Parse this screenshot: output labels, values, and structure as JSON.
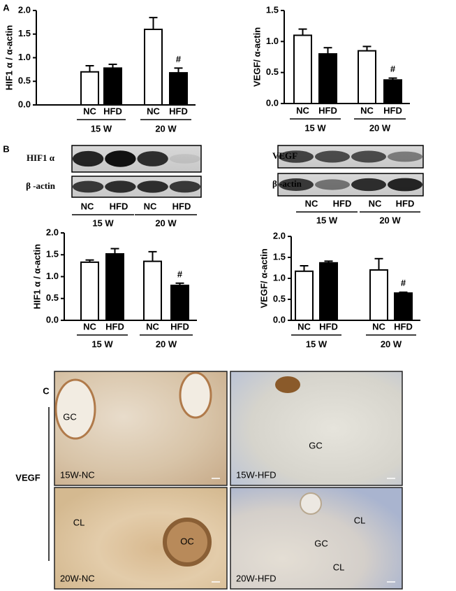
{
  "panel_labels": [
    "A",
    "B",
    "C"
  ],
  "chart_data": [
    {
      "type": "bar",
      "ylabel": "HIF1 α / α-actin",
      "categories": [
        "NC",
        "HFD",
        "NC",
        "HFD"
      ],
      "groups": [
        "15 W",
        "20 W"
      ],
      "values": [
        0.7,
        0.78,
        1.6,
        0.68
      ],
      "errors": [
        0.13,
        0.08,
        0.25,
        0.1
      ],
      "colors": [
        "#ffffff",
        "#000000",
        "#ffffff",
        "#000000"
      ],
      "annotations": [
        null,
        null,
        null,
        "#"
      ],
      "ylim": [
        0,
        2
      ],
      "yticks": [
        {
          "value": 0,
          "label": "0.0"
        },
        0.5,
        {
          "value": 1,
          "label": "1.0"
        },
        1.5,
        {
          "value": 2,
          "label": "2.0"
        }
      ]
    },
    {
      "type": "bar",
      "ylabel": "VEGF/ α-actin",
      "categories": [
        "NC",
        "HFD",
        "NC",
        "HFD"
      ],
      "groups": [
        "15 W",
        "20 W"
      ],
      "values": [
        1.1,
        0.8,
        0.85,
        0.38
      ],
      "errors": [
        0.1,
        0.1,
        0.07,
        0.03
      ],
      "colors": [
        "#ffffff",
        "#000000",
        "#ffffff",
        "#000000"
      ],
      "annotations": [
        null,
        null,
        null,
        "#"
      ],
      "ylim": [
        0,
        1.5
      ],
      "yticks": [
        {
          "value": 0,
          "label": "0.0"
        },
        0.5,
        {
          "value": 1,
          "label": "1.0"
        },
        1.5
      ]
    },
    {
      "type": "bar",
      "ylabel": "HIF1 α / α-actin",
      "categories": [
        "NC",
        "HFD",
        "NC",
        "HFD"
      ],
      "groups": [
        "15 W",
        "20 W"
      ],
      "values": [
        1.33,
        1.52,
        1.35,
        0.8
      ],
      "errors": [
        0.05,
        0.12,
        0.22,
        0.05
      ],
      "colors": [
        "#ffffff",
        "#000000",
        "#ffffff",
        "#000000"
      ],
      "annotations": [
        null,
        null,
        null,
        "#"
      ],
      "ylim": [
        0,
        2
      ],
      "yticks": [
        {
          "value": 0,
          "label": "0.0"
        },
        0.5,
        {
          "value": 1,
          "label": "1.0"
        },
        1.5,
        {
          "value": 2,
          "label": "2.0"
        }
      ]
    },
    {
      "type": "bar",
      "ylabel": "VEGF/ α-actin",
      "categories": [
        "NC",
        "HFD",
        "NC",
        "HFD"
      ],
      "groups": [
        "15 W",
        "20 W"
      ],
      "values": [
        1.17,
        1.37,
        1.2,
        0.65
      ],
      "errors": [
        0.13,
        0.04,
        0.27,
        0.02
      ],
      "colors": [
        "#ffffff",
        "#000000",
        "#ffffff",
        "#000000"
      ],
      "annotations": [
        null,
        null,
        null,
        "#"
      ],
      "ylim": [
        0,
        2
      ],
      "yticks": [
        {
          "value": 0,
          "label": "0.0"
        },
        0.5,
        {
          "value": 1,
          "label": "1.0"
        },
        1.5,
        {
          "value": 2,
          "label": "2.0"
        }
      ]
    }
  ],
  "blots": [
    {
      "rows": [
        "HIF1 α",
        "β -actin"
      ],
      "lanes": [
        "NC",
        "HFD",
        "NC",
        "HFD"
      ],
      "groups": [
        "15 W",
        "20 W"
      ]
    },
    {
      "rows": [
        "VEGF",
        "β -actin"
      ],
      "lanes": [
        "NC",
        "HFD",
        "NC",
        "HFD"
      ],
      "groups": [
        "15 W",
        "20 W"
      ]
    }
  ],
  "histology": {
    "row_label": "VEGF",
    "panels": [
      {
        "label": "15W-NC",
        "marks": [
          "GC"
        ]
      },
      {
        "label": "15W-HFD",
        "marks": [
          "GC"
        ]
      },
      {
        "label": "20W-NC",
        "marks": [
          "CL",
          "OC"
        ]
      },
      {
        "label": "20W-HFD",
        "marks": [
          "CL",
          "GC",
          "CL"
        ]
      }
    ]
  }
}
